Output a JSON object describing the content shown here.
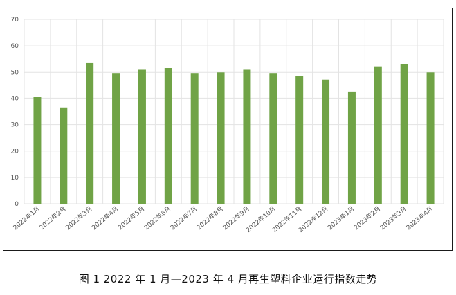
{
  "caption": "图 1  2022 年 1 月—2023 年 4 月再生塑料企业运行指数走势",
  "chart_data": {
    "type": "bar",
    "title": "",
    "xlabel": "",
    "ylabel": "",
    "categories": [
      "2022年1月",
      "2022年2月",
      "2022年3月",
      "2022年4月",
      "2022年5月",
      "2022年6月",
      "2022年7月",
      "2022年8月",
      "2022年9月",
      "2022年10月",
      "2022年11月",
      "2022年12月",
      "2023年1月",
      "2023年2月",
      "2023年3月",
      "2023年4月"
    ],
    "values": [
      40.5,
      36.5,
      53.5,
      49.5,
      51,
      51.5,
      49.5,
      50,
      51,
      49.5,
      48.5,
      47,
      42.5,
      52,
      53,
      50
    ],
    "ylim": [
      0,
      70
    ],
    "yticks": [
      0,
      10,
      20,
      30,
      40,
      50,
      60,
      70
    ],
    "grid": true,
    "legend": "none",
    "bar_color": "#70a346",
    "grid_color": "#e3e3e3"
  }
}
